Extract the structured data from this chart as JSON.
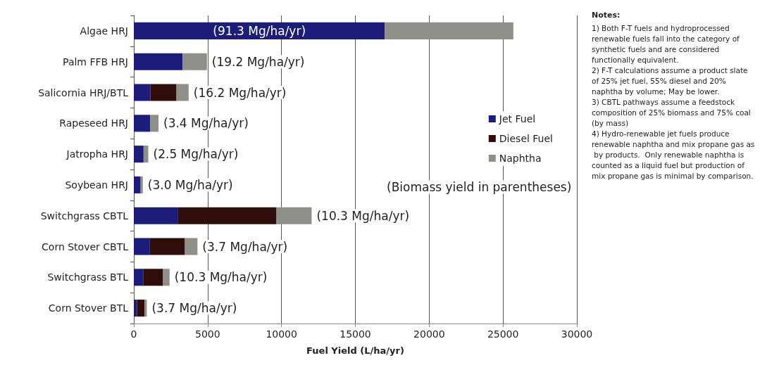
{
  "chart_data": {
    "type": "bar",
    "orientation": "horizontal",
    "stacked": true,
    "xlabel": "Fuel Yield (L/ha/yr)",
    "categories": [
      "Algae HRJ",
      "Palm FFB HRJ",
      "Salicornia HRJ/BTL",
      "Rapeseed HRJ",
      "Jatropha HRJ",
      "Soybean HRJ",
      "Switchgrass CBTL",
      "Corn Stover CBTL",
      "Switchgrass BTL",
      "Corn Stover BTL"
    ],
    "series": [
      {
        "name": "Jet Fuel",
        "color": "#1c1c7a",
        "values": [
          17000,
          3300,
          1130,
          1100,
          660,
          460,
          3000,
          1090,
          660,
          220
        ]
      },
      {
        "name": "Diesel Fuel",
        "color": "#2e0d0a",
        "values": [
          0,
          0,
          1760,
          0,
          0,
          0,
          6660,
          2370,
          1320,
          500
        ]
      },
      {
        "name": "Naphtha",
        "color": "#8f8f8a",
        "values": [
          8700,
          1650,
          820,
          570,
          320,
          150,
          2380,
          850,
          440,
          160
        ]
      }
    ],
    "xlim": [
      0,
      30000
    ],
    "xticks": [
      0,
      5000,
      10000,
      15000,
      20000,
      25000,
      30000
    ],
    "grid": "x",
    "legend": "right",
    "annotations": [
      "(91.3 Mg/ha/yr)",
      "(19.2 Mg/ha/yr)",
      "(16.2 Mg/ha/yr)",
      "(3.4 Mg/ha/yr)",
      "(2.5 Mg/ha/yr)",
      "(3.0 Mg/ha/yr)",
      "(10.3 Mg/ha/yr)",
      "(3.7 Mg/ha/yr)",
      "(10.3 Mg/ha/yr)",
      "(3.7 Mg/ha/yr)",
      "(Biomass yield in parentheses)",
      "Notes:\n1) Both F-T fuels and hydroprocessed renewable fuels fall into the category of synthetic fuels and are considered functionally equivalent.\n2) F-T calculations assume a product slate of 25% jet fuel, 55% diesel and 20% naphtha by volume; May be lower.\n3) CBTL pathways assume a feedstock composition of 25% biomass and 75% coal (by mass)\n4) Hydro-renewable jet fuels produce renewable naphtha and mix propane gas as by products.  Only renewable naphtha is counted as a liquid fuel but production of mix propane gas is minimal by comparison."
    ]
  }
}
